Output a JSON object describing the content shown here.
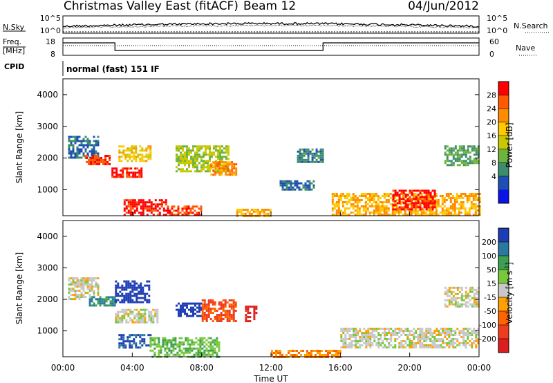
{
  "header": {
    "station": "Christmas Valley East (fitACF)",
    "beam": "Beam 12",
    "date": "04/Jun/2012"
  },
  "noise_panel": {
    "left_label": "N.Sky",
    "right_label": "N.Search",
    "left_ticks": [
      "10^5",
      "10^0"
    ],
    "right_ticks": [
      "10^5",
      "10^0"
    ]
  },
  "freq_panel": {
    "left_label_1": "Freq.",
    "left_label_2": "[MHz]",
    "right_label": "Nave",
    "left_ticks": [
      "18",
      "8"
    ],
    "right_ticks": [
      "60",
      "0"
    ]
  },
  "cpid": {
    "label": "CPID",
    "value": "normal (fast) 151 IF"
  },
  "range_axis": {
    "label": "Slant Range [km]",
    "ticks": [
      "4000",
      "3000",
      "2000",
      "1000"
    ]
  },
  "time_axis": {
    "label": "Time UT",
    "ticks": [
      "00:00",
      "04:00",
      "08:00",
      "12:00",
      "16:00",
      "20:00",
      "00:00"
    ]
  },
  "power_scale": {
    "label": "Power [dB]",
    "ticks": [
      "28",
      "24",
      "20",
      "16",
      "12",
      "8",
      "4"
    ],
    "colors": [
      "#ff0000",
      "#ff5a00",
      "#ff8c00",
      "#ffc800",
      "#c8c800",
      "#6eb43c",
      "#3c8c6e",
      "#1e50b4",
      "#0a14e6"
    ]
  },
  "velocity_scale": {
    "label": "Velocity [m s",
    "label_sup": "-1",
    "label_end": "]",
    "ticks": [
      "200",
      "100",
      "50",
      "15",
      "-15",
      "-50",
      "-100",
      "-200"
    ],
    "colors": [
      "#1e3cb4",
      "#2878a0",
      "#3ca050",
      "#78c83c",
      "#c8c8c8",
      "#ffa000",
      "#ff6400",
      "#f03c1e",
      "#dc1e1e"
    ]
  },
  "chart_data": [
    {
      "type": "heatmap",
      "title": "Power",
      "xlabel": "Time UT",
      "ylabel": "Slant Range [km]",
      "x_range_hours": [
        0,
        24
      ],
      "y_range_km": [
        180,
        4500
      ],
      "colorbar": "Power [dB]",
      "colorbar_range": [
        0,
        30
      ],
      "regions": [
        {
          "t0": 0.3,
          "t1": 2.0,
          "r0": 2000,
          "r1": 2700,
          "value": 6
        },
        {
          "t0": 1.2,
          "t1": 2.7,
          "r0": 1800,
          "r1": 2100,
          "value": 26
        },
        {
          "t0": 2.8,
          "t1": 4.5,
          "r0": 1400,
          "r1": 1700,
          "value": 28
        },
        {
          "t0": 3.2,
          "t1": 5.0,
          "r0": 1900,
          "r1": 2400,
          "value": 18
        },
        {
          "t0": 3.5,
          "t1": 6.0,
          "r0": 200,
          "r1": 700,
          "value": 28
        },
        {
          "t0": 6.0,
          "t1": 8.0,
          "r0": 200,
          "r1": 500,
          "value": 26
        },
        {
          "t0": 6.5,
          "t1": 9.5,
          "r0": 1600,
          "r1": 2400,
          "value": 14
        },
        {
          "t0": 8.5,
          "t1": 10.0,
          "r0": 1500,
          "r1": 1900,
          "value": 22
        },
        {
          "t0": 10.0,
          "t1": 12.0,
          "r0": 200,
          "r1": 400,
          "value": 20
        },
        {
          "t0": 12.5,
          "t1": 14.5,
          "r0": 1000,
          "r1": 1300,
          "value": 6
        },
        {
          "t0": 13.5,
          "t1": 15.0,
          "r0": 1900,
          "r1": 2300,
          "value": 8
        },
        {
          "t0": 15.5,
          "t1": 24.0,
          "r0": 200,
          "r1": 900,
          "value": 20
        },
        {
          "t0": 19.0,
          "t1": 21.5,
          "r0": 400,
          "r1": 1000,
          "value": 28
        },
        {
          "t0": 22.0,
          "t1": 24.0,
          "r0": 1800,
          "r1": 2400,
          "value": 10
        }
      ]
    },
    {
      "type": "heatmap",
      "title": "Velocity",
      "xlabel": "Time UT",
      "ylabel": "Slant Range [km]",
      "x_range_hours": [
        0,
        24
      ],
      "y_range_km": [
        180,
        4500
      ],
      "colorbar": "Velocity [m s-1]",
      "colorbar_range": [
        -200,
        200
      ],
      "regions": [
        {
          "t0": 0.3,
          "t1": 2.0,
          "r0": 2000,
          "r1": 2700,
          "value": 0
        },
        {
          "t0": 1.5,
          "t1": 3.0,
          "r0": 1800,
          "r1": 2100,
          "value": 120
        },
        {
          "t0": 3.0,
          "t1": 5.0,
          "r0": 1900,
          "r1": 2600,
          "value": 210
        },
        {
          "t0": 3.0,
          "t1": 5.5,
          "r0": 1300,
          "r1": 1700,
          "value": 0
        },
        {
          "t0": 3.2,
          "t1": 5.0,
          "r0": 500,
          "r1": 900,
          "value": 150
        },
        {
          "t0": 6.5,
          "t1": 8.0,
          "r0": 1500,
          "r1": 1900,
          "value": 220
        },
        {
          "t0": 8.0,
          "t1": 10.0,
          "r0": 1300,
          "r1": 2000,
          "value": -120
        },
        {
          "t0": 10.5,
          "t1": 11.2,
          "r0": 1300,
          "r1": 1800,
          "value": -180
        },
        {
          "t0": 5.0,
          "t1": 9.0,
          "r0": 200,
          "r1": 800,
          "value": 60
        },
        {
          "t0": 12.0,
          "t1": 16.0,
          "r0": 200,
          "r1": 400,
          "value": -60
        },
        {
          "t0": 16.0,
          "t1": 24.0,
          "r0": 500,
          "r1": 1100,
          "value": 0
        },
        {
          "t0": 22.0,
          "t1": 24.0,
          "r0": 1800,
          "r1": 2400,
          "value": 0
        }
      ]
    }
  ]
}
